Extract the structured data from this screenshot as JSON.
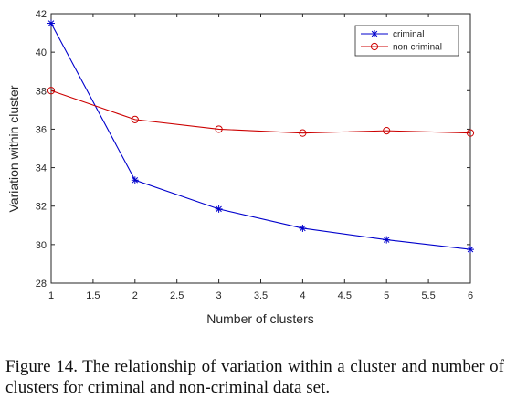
{
  "chart_data": {
    "type": "line",
    "xlabel": "Number of clusters",
    "ylabel": "Variation within cluster",
    "xlim": [
      1,
      6
    ],
    "ylim": [
      28,
      42
    ],
    "xticks": [
      "1",
      "1.5",
      "2",
      "2.5",
      "3",
      "3.5",
      "4",
      "4.5",
      "5",
      "5.5",
      "6"
    ],
    "yticks": [
      "28",
      "30",
      "32",
      "34",
      "36",
      "38",
      "40",
      "42"
    ],
    "x": [
      1,
      2,
      3,
      4,
      5,
      6
    ],
    "series": [
      {
        "name": "criminal",
        "values": [
          41.5,
          33.35,
          31.85,
          30.85,
          30.25,
          29.75
        ],
        "color": "#0000cc",
        "marker": "asterisk"
      },
      {
        "name": "non criminal",
        "values": [
          38.0,
          36.5,
          36.0,
          35.8,
          35.92,
          35.8
        ],
        "color": "#cc0000",
        "marker": "circle"
      }
    ],
    "legend_position": "top-right",
    "grid": false
  },
  "caption": "Figure 14. The relationship of variation within a cluster and number of clusters for criminal and non-criminal data set."
}
